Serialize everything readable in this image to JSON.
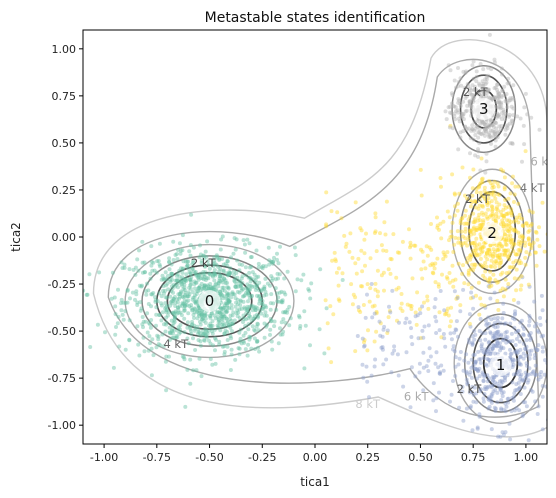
{
  "chart_data": {
    "type": "scatter",
    "title": "Metastable states identification",
    "xlabel": "tica1",
    "ylabel": "tica2",
    "xlim": [
      -1.1,
      1.1
    ],
    "ylim": [
      -1.1,
      1.1
    ],
    "x_ticks": [
      "-1.00",
      "-0.75",
      "-0.50",
      "-0.25",
      "0.00",
      "0.25",
      "0.50",
      "0.75",
      "1.00"
    ],
    "x_tick_values": [
      -1.0,
      -0.75,
      -0.5,
      -0.25,
      0.0,
      0.25,
      0.5,
      0.75,
      1.0
    ],
    "y_ticks": [
      "1.00",
      "0.75",
      "0.50",
      "0.25",
      "0.00",
      "-0.25",
      "-0.50",
      "-0.75",
      "-1.00"
    ],
    "y_tick_values": [
      1.0,
      0.75,
      0.5,
      0.25,
      0.0,
      -0.25,
      -0.5,
      -0.75,
      -1.0
    ],
    "grid": false,
    "states": [
      {
        "label": "0",
        "center": [
          -0.5,
          -0.34
        ],
        "spread": [
          0.2,
          0.14
        ],
        "color": "#66c2a5"
      },
      {
        "label": "1",
        "center": [
          0.88,
          -0.68
        ],
        "spread": [
          0.12,
          0.16
        ],
        "color": "#8da0cb"
      },
      {
        "label": "2",
        "center": [
          0.84,
          0.02
        ],
        "spread": [
          0.1,
          0.16
        ],
        "color": "#ffd92f"
      },
      {
        "label": "3",
        "center": [
          0.8,
          0.68
        ],
        "spread": [
          0.08,
          0.11
        ],
        "color": "#b3b3b3"
      }
    ],
    "contour_levels": [
      {
        "label": "2 kT",
        "color": "#555555"
      },
      {
        "label": "4 kT",
        "color": "#888888"
      },
      {
        "label": "6 kT",
        "color": "#aaaaaa"
      },
      {
        "label": "8 kT",
        "color": "#cccccc"
      }
    ],
    "contour_label_positions": [
      {
        "text": "2 kT",
        "x": -0.53,
        "y": -0.16,
        "color": "#444444"
      },
      {
        "text": "4 kT",
        "x": -0.66,
        "y": -0.59,
        "color": "#666666"
      },
      {
        "text": "2 kT",
        "x": 0.76,
        "y": 0.75,
        "color": "#555555"
      },
      {
        "text": "2 kT",
        "x": 0.77,
        "y": 0.18,
        "color": "#555555"
      },
      {
        "text": "4 kT",
        "x": 1.03,
        "y": 0.24,
        "color": "#777777"
      },
      {
        "text": "6 kT",
        "x": 1.08,
        "y": 0.38,
        "color": "#aaaaaa"
      },
      {
        "text": "2 kT",
        "x": 0.73,
        "y": -0.83,
        "color": "#555555"
      },
      {
        "text": "6 kT",
        "x": 0.48,
        "y": -0.87,
        "color": "#aaaaaa"
      },
      {
        "text": "8 kT",
        "x": 0.25,
        "y": -0.91,
        "color": "#cccccc"
      }
    ]
  }
}
